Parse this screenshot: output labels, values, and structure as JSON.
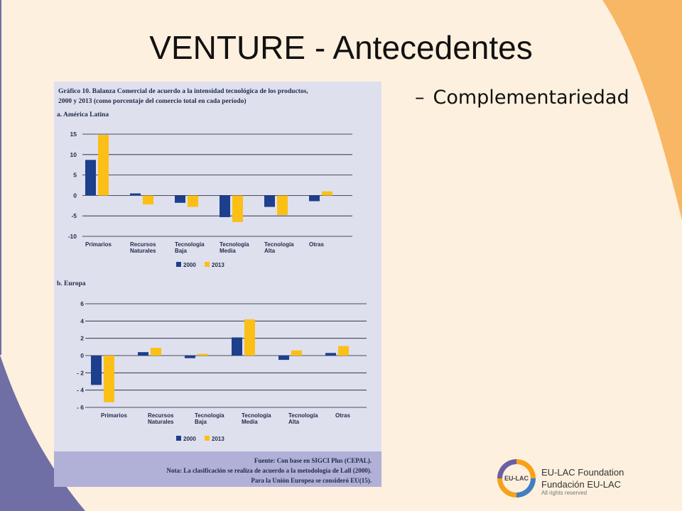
{
  "slide": {
    "title": "VENTURE - Antecedentes",
    "bullet_dash": "–",
    "bullet_text": "Complementariedad"
  },
  "figure": {
    "title_line1": "Gráfico 10. Balanza Comercial de acuerdo a la intensidad tecnológica de los productos,",
    "title_line2": "2000 y 2013 (como porcentaje del comercio total en cada período)",
    "source": "Fuente: Con base en SIGCI Plus (CEPAL).",
    "note1": "Nota: La clasificación se realiza de acuerdo a la metodología de Lall (2000).",
    "note2": "Para la Unión Europea se consideró EU(15)."
  },
  "colors": {
    "series_2000": "#1d3f8c",
    "series_2013": "#fbbf16",
    "background": "#fdf0de",
    "orange_deco": "#f8b765",
    "purple_deco": "#6f6fa5",
    "figure_bg": "#dfe0ee",
    "notes_bg": "#b1b0d6"
  },
  "chart_data": [
    {
      "type": "bar",
      "title": "a. América Latina",
      "categories": [
        "Primarios",
        "Recursos\nNaturales",
        "Tecnología\nBaja",
        "Tecnología\nMedia",
        "Tecnología\nAlta",
        "Otras"
      ],
      "series": [
        {
          "name": "2000",
          "values": [
            8.7,
            0.5,
            -1.8,
            -5.3,
            -2.8,
            -1.4
          ]
        },
        {
          "name": "2013",
          "values": [
            14.8,
            -2.2,
            -2.8,
            -6.5,
            -4.8,
            1.0
          ]
        }
      ],
      "yticks": [
        "15",
        "10",
        "5",
        "0",
        "-5",
        "-10"
      ],
      "ylim": [
        -10,
        15
      ],
      "grid": true,
      "legend": "bottom-center"
    },
    {
      "type": "bar",
      "title": "b. Europa",
      "categories": [
        "Primarios",
        "Recursos\nNaturales",
        "Tecnología\nBaja",
        "Tecnología\nMedia",
        "Tecnología\nAlta",
        "Otras"
      ],
      "series": [
        {
          "name": "2000",
          "values": [
            -3.4,
            0.4,
            -0.3,
            2.1,
            -0.5,
            0.3
          ]
        },
        {
          "name": "2013",
          "values": [
            -5.4,
            0.9,
            0.2,
            4.2,
            0.6,
            1.1
          ]
        }
      ],
      "yticks": [
        "6",
        "4",
        "2",
        "0",
        "- 2",
        "- 4",
        "- 6"
      ],
      "ylim": [
        -6,
        6
      ],
      "grid": true,
      "legend": "bottom-center"
    }
  ],
  "logo": {
    "badge": "EU-LAC",
    "line1": "EU-LAC Foundation",
    "line2": "Fundación EU-LAC",
    "line3": "All rights reserved"
  }
}
